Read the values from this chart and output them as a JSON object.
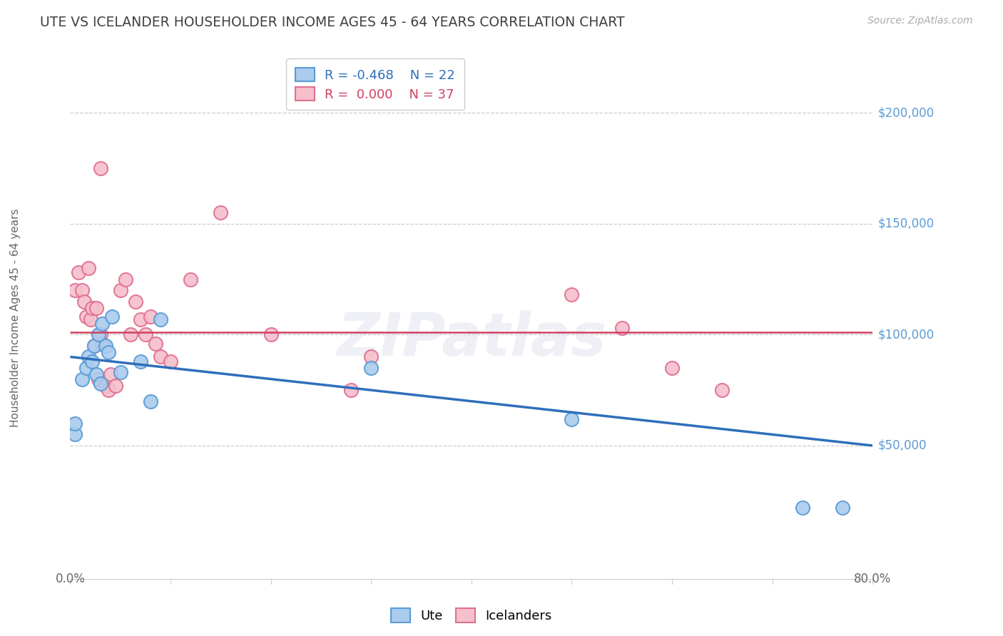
{
  "title": "UTE VS ICELANDER HOUSEHOLDER INCOME AGES 45 - 64 YEARS CORRELATION CHART",
  "source": "Source: ZipAtlas.com",
  "ylabel": "Householder Income Ages 45 - 64 years",
  "ylim": [
    -10000,
    225000
  ],
  "xlim": [
    -0.005,
    0.82
  ],
  "plot_xlim": [
    0.0,
    0.8
  ],
  "yticks": [
    50000,
    100000,
    150000,
    200000
  ],
  "ytick_labels": [
    "$50,000",
    "$100,000",
    "$150,000",
    "$200,000"
  ],
  "ute_color": "#aaccee",
  "ute_edge_color": "#5b9bd5",
  "icelander_color": "#f5bfcc",
  "icelander_edge_color": "#e07090",
  "ute_R": "-0.468",
  "ute_N": "22",
  "icelander_R": "0.000",
  "icelander_N": "37",
  "trend_blue_color": "#2e6fba",
  "trend_pink_color": "#d04060",
  "watermark": "ZIPatlas",
  "background_color": "#ffffff",
  "title_color": "#404040",
  "right_tick_color": "#5b9bd5",
  "axis_text_color": "#666666",
  "grid_color": "#cccccc",
  "ute_scatter_x": [
    0.005,
    0.005,
    0.012,
    0.016,
    0.018,
    0.022,
    0.024,
    0.026,
    0.028,
    0.03,
    0.032,
    0.035,
    0.038,
    0.042,
    0.05,
    0.07,
    0.08,
    0.09,
    0.3,
    0.5,
    0.73,
    0.77
  ],
  "ute_scatter_y": [
    55000,
    60000,
    80000,
    85000,
    90000,
    88000,
    95000,
    82000,
    100000,
    78000,
    105000,
    95000,
    92000,
    108000,
    83000,
    88000,
    70000,
    107000,
    85000,
    62000,
    22000,
    22000
  ],
  "icelander_scatter_x": [
    0.005,
    0.008,
    0.012,
    0.014,
    0.016,
    0.018,
    0.02,
    0.022,
    0.024,
    0.026,
    0.028,
    0.03,
    0.032,
    0.035,
    0.038,
    0.04,
    0.045,
    0.05,
    0.055,
    0.06,
    0.065,
    0.07,
    0.075,
    0.08,
    0.085,
    0.09,
    0.1,
    0.12,
    0.15,
    0.2,
    0.28,
    0.3,
    0.5,
    0.55,
    0.6,
    0.65,
    0.03
  ],
  "icelander_scatter_y": [
    120000,
    128000,
    120000,
    115000,
    108000,
    130000,
    107000,
    112000,
    95000,
    112000,
    80000,
    100000,
    96000,
    77000,
    75000,
    82000,
    77000,
    120000,
    125000,
    100000,
    115000,
    107000,
    100000,
    108000,
    96000,
    90000,
    88000,
    125000,
    155000,
    100000,
    75000,
    90000,
    118000,
    103000,
    85000,
    75000,
    175000
  ],
  "ute_trend_x": [
    0.0,
    0.8
  ],
  "ute_trend_y": [
    90000,
    50000
  ],
  "icelander_trend_x": [
    0.0,
    0.8
  ],
  "icelander_trend_y": [
    101000,
    101000
  ]
}
